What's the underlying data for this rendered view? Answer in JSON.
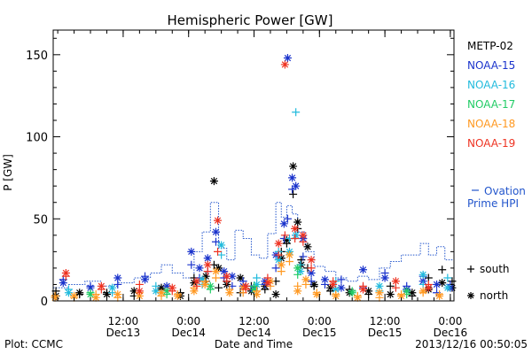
{
  "chart_data": {
    "type": "scatter",
    "title": "Hemispheric Power [GW]",
    "ylabel": "P [GW]",
    "xlabel": "Date and Time",
    "xlim": [
      "2013-12-12 23:10",
      "2013-12-16 00:40"
    ],
    "ylim": [
      0,
      165
    ],
    "y_ticks": [
      0,
      50,
      100,
      150
    ],
    "x_ticks": [
      {
        "at": "2013-12-13 12:00",
        "time": "12:00",
        "date": "Dec13"
      },
      {
        "at": "2013-12-14 00:00",
        "time": "0:00",
        "date": "Dec14"
      },
      {
        "at": "2013-12-14 12:00",
        "time": "12:00",
        "date": "Dec14"
      },
      {
        "at": "2013-12-15 00:00",
        "time": "0:00",
        "date": "Dec15"
      },
      {
        "at": "2013-12-15 12:00",
        "time": "12:00",
        "date": "Dec15"
      },
      {
        "at": "2013-12-16 00:00",
        "time": "0:00",
        "date": "Dec16"
      }
    ],
    "footer_left": "Plot: CCMC",
    "footer_right": "2013/12/16 00:50:05",
    "legend_placement": "right",
    "marker_legend": [
      {
        "symbol": "+",
        "label": "south"
      },
      {
        "symbol": "*",
        "label": "north"
      }
    ],
    "ovation": {
      "label_line1": "Ovation",
      "label_line2": "Prime HPI",
      "color": "#2255cc",
      "x": [
        "2013-12-12 23:10",
        "2013-12-13 02:00",
        "2013-12-13 05:00",
        "2013-12-13 08:00",
        "2013-12-13 11:00",
        "2013-12-13 14:00",
        "2013-12-13 17:00",
        "2013-12-13 19:00",
        "2013-12-13 21:00",
        "2013-12-13 23:00",
        "2013-12-14 01:00",
        "2013-12-14 02:30",
        "2013-12-14 04:00",
        "2013-12-14 05:30",
        "2013-12-14 07:00",
        "2013-12-14 08:30",
        "2013-12-14 10:00",
        "2013-12-14 11:30",
        "2013-12-14 13:00",
        "2013-12-14 14:30",
        "2013-12-14 16:00",
        "2013-12-14 17:00",
        "2013-12-14 18:00",
        "2013-12-14 19:00",
        "2013-12-14 20:00",
        "2013-12-14 21:30",
        "2013-12-14 23:00",
        "2013-12-15 01:00",
        "2013-12-15 03:00",
        "2013-12-15 05:00",
        "2013-12-15 07:00",
        "2013-12-15 09:00",
        "2013-12-15 11:00",
        "2013-12-15 13:00",
        "2013-12-15 15:00",
        "2013-12-15 17:00",
        "2013-12-15 18:30",
        "2013-12-15 20:00",
        "2013-12-15 21:30",
        "2013-12-15 23:00",
        "2013-12-16 00:40"
      ],
      "y": [
        8,
        10,
        12,
        9,
        11,
        14,
        17,
        22,
        17,
        14,
        30,
        42,
        60,
        32,
        25,
        43,
        38,
        28,
        26,
        41,
        60,
        51,
        58,
        53,
        42,
        30,
        21,
        18,
        14,
        12,
        15,
        13,
        20,
        24,
        28,
        28,
        35,
        28,
        33,
        25,
        28
      ]
    },
    "series": [
      {
        "name": "METP-02",
        "color": "#000000",
        "x": [
          "2013-12-12 23:40",
          "2013-12-13 04:00",
          "2013-12-13 09:00",
          "2013-12-13 14:00",
          "2013-12-13 19:00",
          "2013-12-13 22:30",
          "2013-12-14 01:00",
          "2013-12-14 03:10",
          "2013-12-14 04:40",
          "2013-12-14 05:30",
          "2013-12-14 07:00",
          "2013-12-14 09:30",
          "2013-12-14 11:30",
          "2013-12-14 14:00",
          "2013-12-14 16:00",
          "2013-12-14 17:00",
          "2013-12-14 18:00",
          "2013-12-14 19:10",
          "2013-12-14 20:00",
          "2013-12-14 20:40",
          "2013-12-14 21:50",
          "2013-12-14 23:00",
          "2013-12-15 02:00",
          "2013-12-15 05:30",
          "2013-12-15 09:00",
          "2013-12-15 13:00",
          "2013-12-15 17:00",
          "2013-12-15 20:00",
          "2013-12-15 22:30",
          "2013-12-16 00:20"
        ],
        "north": [
          3,
          5,
          4,
          6,
          8,
          3,
          11,
          15,
          73,
          20,
          10,
          14,
          6,
          9,
          4,
          26,
          37,
          82,
          48,
          22,
          33,
          10,
          8,
          5,
          6,
          4,
          5,
          7,
          11,
          8
        ],
        "south": [
          6,
          4,
          5,
          3,
          7,
          5,
          14,
          12,
          22,
          8,
          12,
          5,
          9,
          7,
          12,
          30,
          35,
          65,
          44,
          25,
          20,
          9,
          6,
          7,
          4,
          9,
          3,
          14,
          19,
          12
        ]
      },
      {
        "name": "NOAA-15",
        "color": "#1a33cc",
        "x": [
          "2013-12-13 01:00",
          "2013-12-13 06:00",
          "2013-12-13 11:00",
          "2013-12-13 16:00",
          "2013-12-13 20:00",
          "2013-12-14 00:30",
          "2013-12-14 02:00",
          "2013-12-14 03:30",
          "2013-12-14 05:00",
          "2013-12-14 06:30",
          "2013-12-14 08:00",
          "2013-12-14 10:00",
          "2013-12-14 12:00",
          "2013-12-14 14:00",
          "2013-12-14 16:00",
          "2013-12-14 17:30",
          "2013-12-14 18:10",
          "2013-12-14 19:00",
          "2013-12-14 19:40",
          "2013-12-14 21:00",
          "2013-12-14 22:30",
          "2013-12-15 01:00",
          "2013-12-15 04:00",
          "2013-12-15 08:00",
          "2013-12-15 12:00",
          "2013-12-15 16:00",
          "2013-12-15 19:00",
          "2013-12-15 21:30",
          "2013-12-16 00:00"
        ],
        "north": [
          11,
          8,
          14,
          13,
          9,
          30,
          20,
          26,
          42,
          18,
          15,
          9,
          8,
          12,
          28,
          47,
          148,
          75,
          70,
          38,
          17,
          13,
          8,
          19,
          14,
          7,
          12,
          10,
          8
        ],
        "south": [
          13,
          9,
          10,
          15,
          6,
          22,
          14,
          18,
          36,
          14,
          9,
          12,
          6,
          10,
          20,
          38,
          50,
          68,
          40,
          27,
          12,
          10,
          13,
          8,
          17,
          9,
          15,
          5,
          10
        ]
      },
      {
        "name": "NOAA-16",
        "color": "#22bbdd",
        "x": [
          "2013-12-13 02:00",
          "2013-12-13 10:00",
          "2013-12-13 18:00",
          "2013-12-14 02:30",
          "2013-12-14 06:00",
          "2013-12-14 12:30",
          "2013-12-14 16:30",
          "2013-12-14 18:30",
          "2013-12-14 19:40",
          "2013-12-14 20:30",
          "2013-12-15 03:00",
          "2013-12-15 11:00",
          "2013-12-15 19:00",
          "2013-12-15 23:30"
        ],
        "north": [
          5,
          8,
          6,
          13,
          34,
          10,
          25,
          30,
          40,
          18,
          7,
          9,
          16,
          8
        ],
        "south": [
          7,
          5,
          9,
          10,
          28,
          14,
          30,
          38,
          115,
          22,
          12,
          6,
          10,
          14
        ]
      },
      {
        "name": "NOAA-17",
        "color": "#22cc66",
        "x": [
          "2013-12-13 06:00",
          "2013-12-13 20:00",
          "2013-12-14 04:00",
          "2013-12-14 12:00",
          "2013-12-14 20:00",
          "2013-12-15 06:00",
          "2013-12-15 16:00"
        ],
        "north": [
          4,
          6,
          9,
          7,
          20,
          5,
          6
        ],
        "south": [
          5,
          4,
          7,
          9,
          16,
          6,
          4
        ]
      },
      {
        "name": "NOAA-18",
        "color": "#ff9922",
        "x": [
          "2013-12-12 23:30",
          "2013-12-13 03:00",
          "2013-12-13 07:00",
          "2013-12-13 11:00",
          "2013-12-13 15:00",
          "2013-12-13 19:00",
          "2013-12-13 22:00",
          "2013-12-14 01:00",
          "2013-12-14 03:00",
          "2013-12-14 05:00",
          "2013-12-14 07:30",
          "2013-12-14 10:00",
          "2013-12-14 12:30",
          "2013-12-14 15:00",
          "2013-12-14 17:00",
          "2013-12-14 18:30",
          "2013-12-14 20:00",
          "2013-12-14 21:30",
          "2013-12-14 23:30",
          "2013-12-15 03:00",
          "2013-12-15 07:00",
          "2013-12-15 11:00",
          "2013-12-15 15:00",
          "2013-12-15 19:00",
          "2013-12-15 22:00"
        ],
        "north": [
          2,
          3,
          2,
          4,
          3,
          5,
          3,
          6,
          10,
          18,
          5,
          8,
          4,
          12,
          22,
          28,
          6,
          13,
          4,
          3,
          2,
          5,
          3,
          6,
          3
        ],
        "south": [
          3,
          2,
          4,
          2,
          5,
          3,
          4,
          8,
          12,
          14,
          7,
          5,
          6,
          9,
          18,
          24,
          9,
          10,
          5,
          4,
          3,
          2,
          4,
          5,
          4
        ]
      },
      {
        "name": "NOAA-19",
        "color": "#ee3322",
        "x": [
          "2013-12-13 01:30",
          "2013-12-13 08:00",
          "2013-12-13 15:00",
          "2013-12-13 21:00",
          "2013-12-14 01:30",
          "2013-12-14 03:30",
          "2013-12-14 05:20",
          "2013-12-14 07:00",
          "2013-12-14 10:30",
          "2013-12-14 14:30",
          "2013-12-14 16:30",
          "2013-12-14 17:40",
          "2013-12-14 19:30",
          "2013-12-14 21:00",
          "2013-12-14 22:30",
          "2013-12-15 02:30",
          "2013-12-15 08:00",
          "2013-12-15 14:00",
          "2013-12-15 20:00"
        ],
        "north": [
          17,
          9,
          6,
          8,
          12,
          22,
          49,
          15,
          9,
          11,
          35,
          144,
          44,
          40,
          25,
          10,
          7,
          12,
          8
        ],
        "south": [
          15,
          7,
          10,
          6,
          9,
          18,
          30,
          12,
          7,
          14,
          28,
          40,
          38,
          36,
          20,
          12,
          9,
          8,
          10
        ]
      }
    ]
  }
}
